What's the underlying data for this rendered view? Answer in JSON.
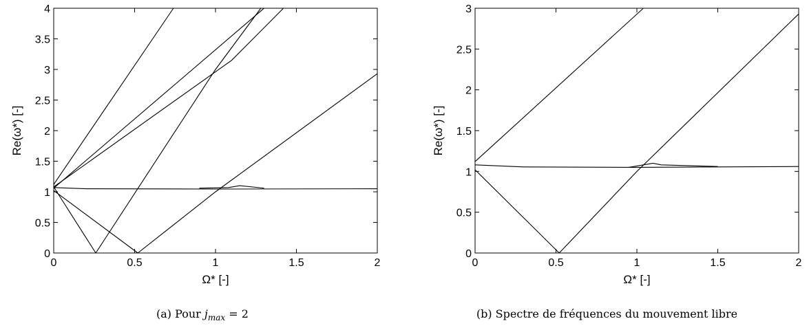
{
  "chart_data": [
    {
      "type": "line",
      "caption_prefix": "(a) Pour ",
      "caption_math_var": "j",
      "caption_math_sub": "max",
      "caption_math_rest": " = 2",
      "xlabel": "Ω* [-]",
      "ylabel": "Re(ω*) [-]",
      "xlim": [
        0,
        2
      ],
      "ylim": [
        0,
        4
      ],
      "xticks": [
        "0",
        "0.5",
        "1",
        "1.5",
        "2"
      ],
      "yticks": [
        "0",
        "0.5",
        "1",
        "1.5",
        "2",
        "2.5",
        "3",
        "3.5",
        "4"
      ],
      "grid": false,
      "series": [
        {
          "x": [
            0,
            0.74
          ],
          "y": [
            1.12,
            4.0
          ]
        },
        {
          "x": [
            0,
            1.3
          ],
          "y": [
            1.06,
            4.0
          ]
        },
        {
          "x": [
            0,
            1.1,
            1.42
          ],
          "y": [
            1.08,
            3.15,
            4.0
          ]
        },
        {
          "x": [
            0,
            0.26
          ],
          "y": [
            1.08,
            0.0
          ]
        },
        {
          "x": [
            0.26,
            1.0,
            1.28
          ],
          "y": [
            0.0,
            3.0,
            4.0
          ]
        },
        {
          "x": [
            0,
            0.52
          ],
          "y": [
            1.02,
            0.0
          ]
        },
        {
          "x": [
            0.52,
            1.0,
            2.0
          ],
          "y": [
            0.0,
            1.0,
            2.93
          ]
        },
        {
          "x": [
            0,
            0.2,
            1.0,
            2.0
          ],
          "y": [
            1.07,
            1.05,
            1.045,
            1.05
          ]
        },
        {
          "x": [
            0.9,
            1.08,
            1.15,
            1.3
          ],
          "y": [
            1.06,
            1.07,
            1.1,
            1.06
          ]
        }
      ]
    },
    {
      "type": "line",
      "caption": "(b) Spectre de fréquences du mouvement libre",
      "xlabel": "Ω* [-]",
      "ylabel": "Re(ω*) [-]",
      "xlim": [
        0,
        2
      ],
      "ylim": [
        0,
        3
      ],
      "xticks": [
        "0",
        "0.5",
        "1",
        "1.5",
        "2"
      ],
      "yticks": [
        "0",
        "0.5",
        "1",
        "1.5",
        "2",
        "2.5",
        "3"
      ],
      "grid": false,
      "series": [
        {
          "x": [
            0,
            1.04
          ],
          "y": [
            1.12,
            3.0
          ]
        },
        {
          "x": [
            0,
            0.52
          ],
          "y": [
            1.02,
            0.0
          ]
        },
        {
          "x": [
            0.52,
            1.0,
            2.0
          ],
          "y": [
            0.0,
            1.0,
            2.93
          ]
        },
        {
          "x": [
            0,
            0.3,
            1.0,
            2.0
          ],
          "y": [
            1.08,
            1.055,
            1.05,
            1.06
          ]
        },
        {
          "x": [
            0.95,
            1.1,
            1.15,
            1.5
          ],
          "y": [
            1.05,
            1.1,
            1.08,
            1.06
          ]
        }
      ]
    }
  ]
}
